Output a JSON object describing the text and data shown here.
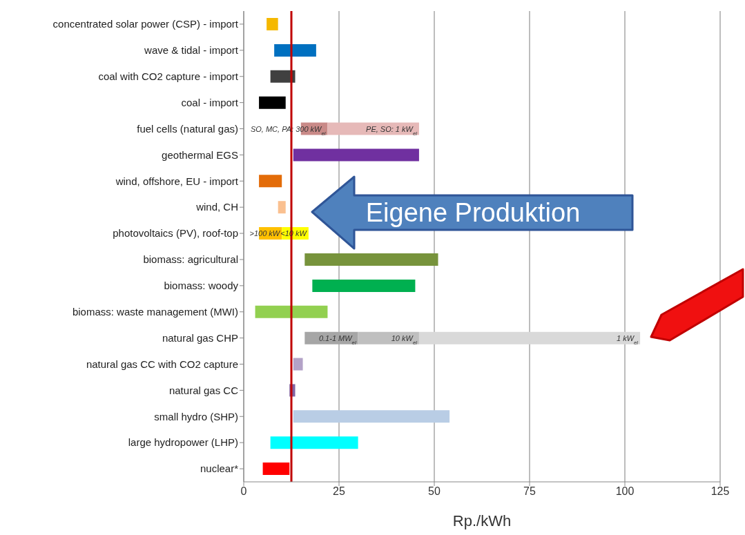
{
  "chart_data": {
    "type": "bar",
    "orientation": "horizontal",
    "xlabel": "Rp./kWh",
    "categories": [
      "concentrated solar power (CSP) - import",
      "wave & tidal - import",
      "coal with CO2 capture - import",
      "coal - import",
      "fuel cells (natural gas)",
      "geothermal EGS",
      "wind, offshore, EU - import",
      "wind, CH",
      "photovoltaics (PV), roof-top",
      "biomass: agricultural",
      "biomass: woody",
      "biomass: waste management (MWI)",
      "natural gas CHP",
      "natural gas CC with CO2 capture",
      "natural gas CC",
      "small hydro (SHP)",
      "large hydropower (LHP)",
      "nuclear*"
    ],
    "series": [
      {
        "colors": [
          "#f5b800",
          "#0070c0",
          "#404040",
          "#000000",
          "#c98a88",
          "#7030a0",
          "#e36c09",
          "#fac090",
          "#ffc000",
          "#77933c",
          "#00b050",
          "#92d050",
          "#a6a6a6",
          "#b3a2c7",
          "#8064a2",
          "#b9cde5",
          "#00ffff",
          "#ff0000"
        ],
        "base": [
          6,
          8,
          7,
          4,
          15,
          13,
          4,
          9,
          4,
          16,
          18,
          3,
          16,
          13,
          12,
          13,
          7,
          5
        ],
        "values": [
          3,
          11,
          6.5,
          7,
          7,
          33,
          6,
          2,
          6,
          35,
          27,
          19,
          14,
          2.5,
          1.5,
          41,
          23,
          7
        ]
      },
      {
        "colors": [
          null,
          null,
          null,
          null,
          "#e6b9b8",
          null,
          null,
          null,
          "#ffff00",
          null,
          null,
          null,
          "#bfbfbf",
          null,
          null,
          null,
          null,
          null
        ],
        "base": [
          null,
          null,
          null,
          null,
          22,
          null,
          null,
          null,
          10,
          null,
          null,
          null,
          30,
          null,
          null,
          null,
          null,
          null
        ],
        "values": [
          null,
          null,
          null,
          null,
          24,
          null,
          null,
          null,
          7,
          null,
          null,
          null,
          16,
          null,
          null,
          null,
          null,
          null
        ]
      },
      {
        "colors": [
          null,
          null,
          null,
          null,
          null,
          null,
          null,
          null,
          null,
          null,
          null,
          null,
          "#d9d9d9",
          null,
          null,
          null,
          null,
          null
        ],
        "base": [
          null,
          null,
          null,
          null,
          null,
          null,
          null,
          null,
          null,
          null,
          null,
          null,
          46,
          null,
          null,
          null,
          null,
          null
        ],
        "values": [
          null,
          null,
          null,
          null,
          null,
          null,
          null,
          null,
          null,
          null,
          null,
          null,
          58,
          null,
          null,
          null,
          null,
          null
        ]
      }
    ],
    "xlim": [
      0,
      125
    ],
    "xticks": [
      0,
      25,
      50,
      75,
      100,
      125
    ],
    "grid": "x",
    "ref_lines": [
      {
        "axis": "x",
        "value": 12.5,
        "color": "#c00000"
      }
    ],
    "annotations": [
      "Eigene Produktion",
      {
        "text": "SO, MC, PA: 300 kW$_{el}$",
        "x": 22,
        "y": "fuel cells (natural gas)"
      },
      {
        "text": "PE, SO: 1 kW$_{el}$",
        "x": 46,
        "y": "fuel cells (natural gas)"
      },
      {
        "text": ">100 kW",
        "x": 10,
        "y": "photovoltaics (PV), roof-top"
      },
      {
        "text": "<10 kW",
        "x": 17,
        "y": "photovoltaics (PV), roof-top"
      },
      {
        "text": "0.1-1 MW$_{el}$",
        "x": 30,
        "y": "natural gas CHP"
      },
      {
        "text": "10 kW$_{el}$",
        "x": 46,
        "y": "natural gas CHP"
      },
      {
        "text": "1 kW$_{el}$",
        "x": 104,
        "y": "natural gas CHP"
      }
    ]
  }
}
